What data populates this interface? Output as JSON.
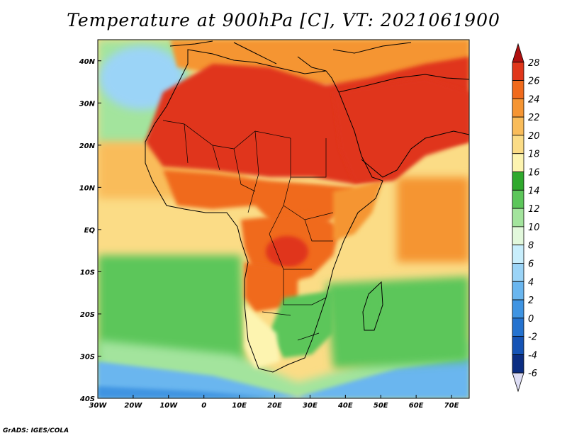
{
  "title": "Temperature at 900hPa [C], VT: 2021061900",
  "credit": "GrADS: IGES/COLA",
  "map": {
    "lon_ticks": [
      "30W",
      "20W",
      "10W",
      "0",
      "10E",
      "20E",
      "30E",
      "40E",
      "50E",
      "60E",
      "70E"
    ],
    "lat_ticks": [
      "40N",
      "30N",
      "20N",
      "10N",
      "EQ",
      "10S",
      "20S",
      "30S",
      "40S"
    ],
    "lon_range": [
      -30,
      75
    ],
    "lat_range": [
      -40,
      45
    ]
  },
  "colorbar": {
    "levels": [
      "28",
      "26",
      "24",
      "22",
      "20",
      "18",
      "16",
      "14",
      "12",
      "10",
      "8",
      "6",
      "4",
      "2",
      "0",
      "-2",
      "-4",
      "-6"
    ],
    "colors": [
      "#b0100f",
      "#e0361a",
      "#f06a1c",
      "#f59533",
      "#f9bc5a",
      "#fbdc86",
      "#fdf4b0",
      "#2fa92d",
      "#5cc65a",
      "#a3e49d",
      "#e2f8dc",
      "#c8eefc",
      "#9bd4f7",
      "#6ab6ef",
      "#3f94e2",
      "#2472cf",
      "#1553b5",
      "#0b2d82",
      "#ddddf5"
    ]
  },
  "regions": {
    "ocean_north_atlantic": "#a3e49d",
    "ocean_subtropical_atlantic": "#f9bc5a",
    "ocean_equatorial_atlantic": "#fbdc86",
    "ocean_south_atlantic": "#5cc65a",
    "ocean_southern": "#6ab6ef",
    "ocean_indian": "#fbdc86",
    "ocean_arabian_sea": "#f59533",
    "land_sahara": "#e0361a",
    "land_sahel": "#f06a1c",
    "land_east_africa": "#f59533",
    "land_southern_africa": "#5cc65a",
    "land_cape": "#fdf4b0",
    "land_europe": "#f59533",
    "land_arabia": "#e0361a"
  }
}
